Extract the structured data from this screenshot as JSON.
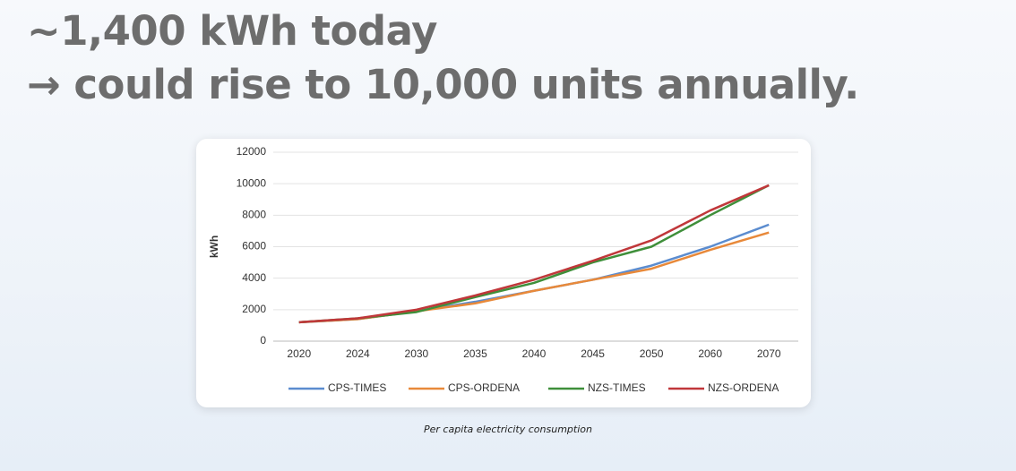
{
  "headline": [
    "~1,400 kWh today",
    "→ could rise to 10,000 units annually."
  ],
  "caption": "Per capita electricity consumption",
  "chart_data": {
    "type": "line",
    "y_label": "kWh",
    "categories": [
      "2020",
      "2024",
      "2030",
      "2035",
      "2040",
      "2045",
      "2050",
      "2060",
      "2070"
    ],
    "series": [
      {
        "name": "CPS-TIMES",
        "color": "#5b8ccf",
        "values": [
          1200,
          1400,
          1900,
          2500,
          3200,
          3900,
          4800,
          6000,
          7400
        ]
      },
      {
        "name": "CPS-ORDENA",
        "color": "#e8893a",
        "values": [
          1200,
          1400,
          1900,
          2400,
          3200,
          3900,
          4600,
          5800,
          6900
        ]
      },
      {
        "name": "NZS-TIMES",
        "color": "#3f8f3a",
        "values": [
          1200,
          1450,
          1850,
          2800,
          3700,
          5000,
          6000,
          8000,
          9900
        ]
      },
      {
        "name": "NZS-ORDENA",
        "color": "#c0373a",
        "values": [
          1200,
          1450,
          2000,
          2900,
          3900,
          5100,
          6400,
          8300,
          9900
        ]
      }
    ],
    "ylim": [
      0,
      12000
    ],
    "yticks": [
      0,
      2000,
      4000,
      6000,
      8000,
      10000,
      12000
    ],
    "grid": true,
    "legend": "bottom"
  }
}
